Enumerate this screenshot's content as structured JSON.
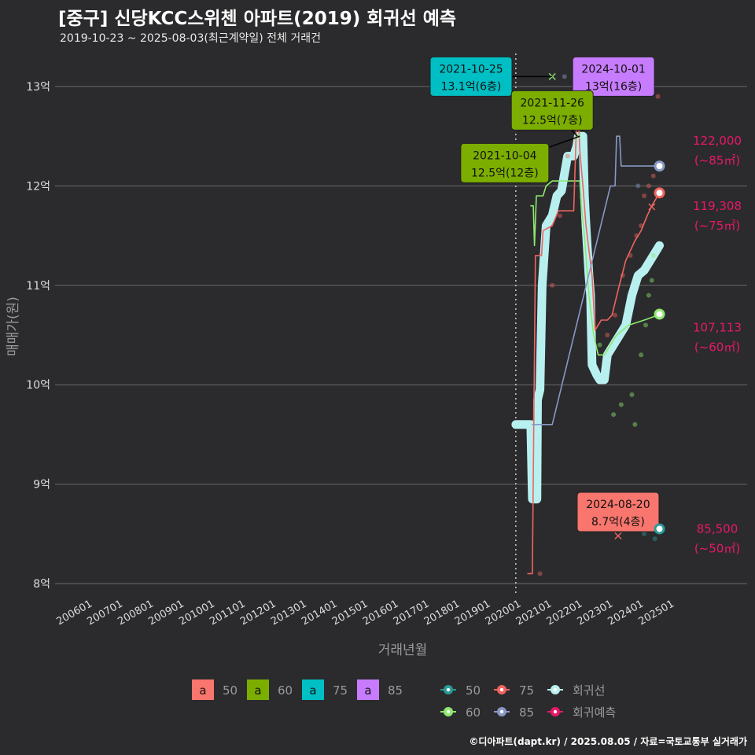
{
  "header": {
    "title": "[중구] 신당KCC스위첸 아파트(2019) 회귀선 예측",
    "subtitle": "2019-10-23 ~ 2025-08-03(최근계약일) 전체 거래건"
  },
  "caption": "©디아파트(dapt.kr) / 2025.08.05 / 자료=국토교통부 실거래가",
  "colors": {
    "s50": "#2a9a98",
    "s60": "#8ee86e",
    "s75": "#f0645f",
    "s85": "#8898c4",
    "regression": "#b8f0f0",
    "forecast": "#e81868",
    "box50": "#f8766d",
    "box60": "#7cae00",
    "box75": "#00bfc4",
    "box85": "#c77cff",
    "background": "#2b2b2d",
    "grid": "#6a6a6a"
  },
  "chart_data": {
    "type": "line",
    "xlabel": "거래년월",
    "ylabel": "매매가(원)",
    "x_ticks": [
      "200601",
      "200701",
      "200801",
      "200901",
      "201001",
      "201101",
      "201201",
      "201301",
      "201401",
      "201501",
      "201601",
      "201701",
      "201801",
      "201901",
      "202001",
      "202101",
      "202201",
      "202301",
      "202401",
      "202501"
    ],
    "y_ticks": [
      {
        "value": 8,
        "label": "8억"
      },
      {
        "value": 9,
        "label": "9억"
      },
      {
        "value": 10,
        "label": "10억"
      },
      {
        "value": 11,
        "label": "11억"
      },
      {
        "value": 12,
        "label": "12억"
      },
      {
        "value": 13,
        "label": "13억"
      }
    ],
    "ylim": [
      7.85,
      13.45
    ],
    "xlim": [
      2005.7,
      2027.0
    ],
    "vline_x": 2019.81,
    "series": [
      {
        "name": "회귀선",
        "key": "regression",
        "points": [
          [
            2019.81,
            9.6
          ],
          [
            2020.3,
            9.6
          ],
          [
            2020.35,
            8.85
          ],
          [
            2020.5,
            8.85
          ],
          [
            2020.52,
            9.85
          ],
          [
            2020.6,
            9.95
          ],
          [
            2020.67,
            11.0
          ],
          [
            2020.8,
            11.6
          ],
          [
            2021.0,
            11.7
          ],
          [
            2021.15,
            11.9
          ],
          [
            2021.3,
            11.95
          ],
          [
            2021.5,
            12.3
          ],
          [
            2021.7,
            12.3
          ],
          [
            2021.8,
            12.4
          ],
          [
            2021.85,
            12.5
          ],
          [
            2022.0,
            12.5
          ],
          [
            2022.05,
            11.9
          ],
          [
            2022.1,
            11.6
          ],
          [
            2022.2,
            11.1
          ],
          [
            2022.25,
            10.9
          ],
          [
            2022.3,
            10.2
          ],
          [
            2022.45,
            10.1
          ],
          [
            2022.55,
            10.05
          ],
          [
            2022.7,
            10.05
          ],
          [
            2022.8,
            10.3
          ],
          [
            2023.0,
            10.4
          ],
          [
            2023.2,
            10.5
          ],
          [
            2023.4,
            10.6
          ],
          [
            2023.6,
            10.9
          ],
          [
            2023.8,
            11.1
          ],
          [
            2024.0,
            11.15
          ],
          [
            2024.2,
            11.25
          ],
          [
            2024.4,
            11.35
          ],
          [
            2024.5,
            11.4
          ]
        ]
      },
      {
        "name": "50",
        "key": "s50",
        "points": [
          [
            2023.6,
            8.55
          ],
          [
            2024.5,
            8.55
          ]
        ]
      },
      {
        "name": "60",
        "key": "s60",
        "points": [
          [
            2020.3,
            11.8
          ],
          [
            2020.38,
            11.8
          ],
          [
            2020.42,
            11.4
          ],
          [
            2020.48,
            11.9
          ],
          [
            2020.7,
            11.9
          ],
          [
            2020.8,
            12.0
          ],
          [
            2021.0,
            12.05
          ],
          [
            2021.5,
            12.05
          ],
          [
            2021.9,
            12.05
          ],
          [
            2021.95,
            11.8
          ],
          [
            2022.05,
            11.5
          ],
          [
            2022.2,
            10.9
          ],
          [
            2022.35,
            10.5
          ],
          [
            2022.5,
            10.3
          ],
          [
            2022.7,
            10.3
          ],
          [
            2022.9,
            10.4
          ],
          [
            2023.1,
            10.5
          ],
          [
            2023.3,
            10.55
          ],
          [
            2023.5,
            10.6
          ],
          [
            2024.0,
            10.65
          ],
          [
            2024.45,
            10.7
          ]
        ]
      },
      {
        "name": "75",
        "key": "s75",
        "points": [
          [
            2020.2,
            8.1
          ],
          [
            2020.35,
            8.1
          ],
          [
            2020.45,
            11.3
          ],
          [
            2020.65,
            11.3
          ],
          [
            2020.7,
            11.55
          ],
          [
            2021.0,
            11.6
          ],
          [
            2021.2,
            11.75
          ],
          [
            2021.5,
            11.75
          ],
          [
            2021.7,
            11.75
          ],
          [
            2021.82,
            12.9
          ],
          [
            2021.9,
            12.35
          ],
          [
            2022.0,
            12.0
          ],
          [
            2022.1,
            11.6
          ],
          [
            2022.3,
            11.1
          ],
          [
            2022.4,
            10.55
          ],
          [
            2022.6,
            10.65
          ],
          [
            2022.8,
            10.65
          ],
          [
            2022.95,
            10.7
          ],
          [
            2023.15,
            10.95
          ],
          [
            2023.4,
            11.25
          ],
          [
            2023.7,
            11.45
          ],
          [
            2023.9,
            11.55
          ],
          [
            2024.1,
            11.7
          ],
          [
            2024.25,
            11.8
          ],
          [
            2024.5,
            11.93
          ]
        ]
      },
      {
        "name": "85",
        "key": "s85",
        "points": [
          [
            2020.35,
            9.6
          ],
          [
            2021.0,
            9.6
          ],
          [
            2022.9,
            12.0
          ],
          [
            2023.05,
            12.0
          ],
          [
            2023.1,
            12.5
          ],
          [
            2023.2,
            12.5
          ],
          [
            2023.25,
            12.2
          ],
          [
            2024.5,
            12.2
          ]
        ]
      }
    ],
    "scatter": [
      {
        "key": "s75",
        "x": 2020.6,
        "y": 8.1
      },
      {
        "key": "s75",
        "x": 2021.0,
        "y": 11.0
      },
      {
        "key": "s75",
        "x": 2021.25,
        "y": 11.7
      },
      {
        "key": "s75",
        "x": 2021.5,
        "y": 12.3
      },
      {
        "key": "s75",
        "x": 2022.8,
        "y": 10.5
      },
      {
        "key": "s75",
        "x": 2023.05,
        "y": 10.7
      },
      {
        "key": "s75",
        "x": 2023.3,
        "y": 11.1
      },
      {
        "key": "s75",
        "x": 2023.55,
        "y": 11.3
      },
      {
        "key": "s75",
        "x": 2023.75,
        "y": 11.5
      },
      {
        "key": "s75",
        "x": 2023.9,
        "y": 11.6
      },
      {
        "key": "s75",
        "x": 2024.0,
        "y": 11.9
      },
      {
        "key": "s75",
        "x": 2024.15,
        "y": 12.0
      },
      {
        "key": "s75",
        "x": 2024.3,
        "y": 12.1
      },
      {
        "key": "s75",
        "x": 2024.45,
        "y": 12.9
      },
      {
        "key": "s60",
        "x": 2022.55,
        "y": 10.4
      },
      {
        "key": "s60",
        "x": 2023.0,
        "y": 9.7
      },
      {
        "key": "s60",
        "x": 2023.25,
        "y": 9.8
      },
      {
        "key": "s60",
        "x": 2023.6,
        "y": 9.9
      },
      {
        "key": "s60",
        "x": 2023.7,
        "y": 9.6
      },
      {
        "key": "s60",
        "x": 2023.9,
        "y": 10.3
      },
      {
        "key": "s60",
        "x": 2024.05,
        "y": 10.6
      },
      {
        "key": "s60",
        "x": 2024.15,
        "y": 10.9
      },
      {
        "key": "s60",
        "x": 2024.25,
        "y": 11.05
      },
      {
        "key": "s60",
        "x": 2024.3,
        "y": 11.3
      },
      {
        "key": "s50",
        "x": 2023.8,
        "y": 8.7
      },
      {
        "key": "s50",
        "x": 2024.0,
        "y": 8.5
      },
      {
        "key": "s50",
        "x": 2024.35,
        "y": 8.45
      },
      {
        "key": "s85",
        "x": 2023.8,
        "y": 12.0
      },
      {
        "key": "s85",
        "x": 2024.0,
        "y": 13.0
      },
      {
        "key": "s85",
        "x": 2021.4,
        "y": 13.1
      }
    ],
    "forecast_markers": [
      {
        "key": "s60",
        "x": 2021.0,
        "y": 13.1
      },
      {
        "key": "s60",
        "x": 2021.82,
        "y": 12.5
      },
      {
        "key": "s75",
        "x": 2024.25,
        "y": 11.79
      },
      {
        "key": "s75",
        "x": 2023.15,
        "y": 8.48
      }
    ],
    "end_points": [
      {
        "key": "s85",
        "x": 2024.5,
        "y": 12.2,
        "value": "122,000",
        "unit": "(~85㎡)"
      },
      {
        "key": "s75",
        "x": 2024.5,
        "y": 11.93,
        "value": "119,308",
        "unit": "(~75㎡)"
      },
      {
        "key": "s60",
        "x": 2024.5,
        "y": 10.71,
        "value": "107,113",
        "unit": "(~60㎡)"
      },
      {
        "key": "s50",
        "x": 2024.5,
        "y": 8.55,
        "value": "85,500",
        "unit": "(~50㎡)"
      }
    ],
    "annotations": [
      {
        "date": "2021-10-25",
        "text": "13.1억(6층)",
        "color": "box75",
        "x": 2021.0,
        "y": 13.1,
        "box_x": 2018.35,
        "box_y": 13.1
      },
      {
        "date": "2024-10-01",
        "text": "13억(16층)",
        "color": "box85",
        "x": 2021.82,
        "y": 13.1,
        "box_x": 2023.0,
        "box_y": 13.1
      },
      {
        "date": "2021-11-26",
        "text": "12.5억(7층)",
        "color": "box60",
        "x": 2021.82,
        "y": 12.5,
        "box_x": 2021.0,
        "box_y": 12.76
      },
      {
        "date": "2021-10-04",
        "text": "12.5억(12층)",
        "color": "box60",
        "x": 2021.9,
        "y": 12.5,
        "box_x": 2019.45,
        "box_y": 12.23
      },
      {
        "date": "2024-08-20",
        "text": "8.7억(4층)",
        "color": "box50",
        "x": 2023.6,
        "y": 8.55,
        "box_x": 2023.15,
        "box_y": 8.72
      }
    ],
    "legend_boxes": [
      {
        "label": "50",
        "color": "box50",
        "glyph": "a"
      },
      {
        "label": "60",
        "color": "box60",
        "glyph": "a"
      },
      {
        "label": "75",
        "color": "box75",
        "glyph": "a"
      },
      {
        "label": "85",
        "color": "box85",
        "glyph": "a"
      }
    ],
    "legend_lines": [
      {
        "label": "50",
        "key": "s50"
      },
      {
        "label": "75",
        "key": "s75"
      },
      {
        "label": "회귀선",
        "key": "regression"
      },
      {
        "label": "60",
        "key": "s60"
      },
      {
        "label": "85",
        "key": "s85"
      },
      {
        "label": "회귀예측",
        "key": "forecast"
      }
    ]
  }
}
